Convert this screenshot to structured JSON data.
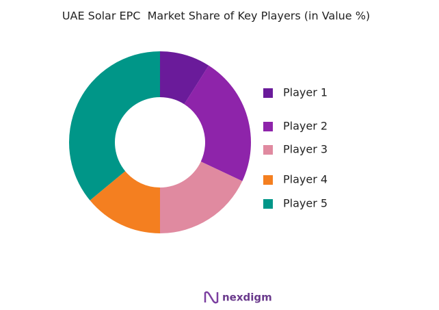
{
  "chart_data": {
    "type": "donut",
    "title": "UAE Solar EPC  Market Share of Key Players (in Value %)",
    "categories": [
      "Player 1",
      "Player 2",
      "Player 3",
      "Player 4",
      "Player 5"
    ],
    "values": [
      9,
      23,
      18,
      14,
      36
    ],
    "colors": [
      "#6a1b9a",
      "#8e24aa",
      "#e08aa0",
      "#f47f20",
      "#009688"
    ],
    "legend": "right"
  },
  "logo": "nexdigm"
}
